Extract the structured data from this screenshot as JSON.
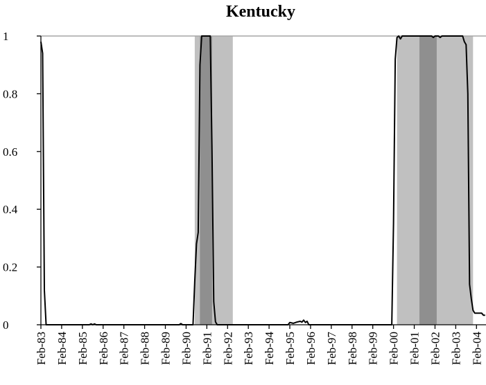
{
  "chart_data": {
    "type": "line",
    "title": "Kentucky",
    "xlabel": "",
    "ylabel": "",
    "ylim": [
      0,
      1
    ],
    "xlim": [
      "1983-02",
      "2004-07"
    ],
    "y_ticks": [
      "0",
      "0.2",
      "0.4",
      "0.6",
      "0.8",
      "1"
    ],
    "x_ticks": [
      "Feb-83",
      "Feb-84",
      "Feb-85",
      "Feb-86",
      "Feb-87",
      "Feb-88",
      "Feb-89",
      "Feb-90",
      "Feb-91",
      "Feb-92",
      "Feb-93",
      "Feb-94",
      "Feb-95",
      "Feb-96",
      "Feb-97",
      "Feb-98",
      "Feb-99",
      "Feb-00",
      "Feb-01",
      "Feb-02",
      "Feb-03",
      "Feb-04"
    ],
    "grid": false,
    "legend": "none",
    "reference_line": 1,
    "bands": [
      {
        "start": "1990-07",
        "end": "1992-05",
        "shade": "light"
      },
      {
        "start": "1990-10",
        "end": "1991-05",
        "shade": "dark"
      },
      {
        "start": "2000-04",
        "end": "2003-12",
        "shade": "light"
      },
      {
        "start": "2001-05",
        "end": "2002-03",
        "shade": "dark"
      }
    ],
    "series": [
      {
        "points": [
          [
            "1983-02",
            0.98
          ],
          [
            "1983-03",
            0.94
          ],
          [
            "1983-04",
            0.12
          ],
          [
            "1983-05",
            0.0
          ],
          [
            "1985-06",
            0.0
          ],
          [
            "1985-07",
            0.003
          ],
          [
            "1985-08",
            0.0
          ],
          [
            "1985-09",
            0.003
          ],
          [
            "1985-10",
            0.0
          ],
          [
            "1989-10",
            0.0
          ],
          [
            "1989-11",
            0.004
          ],
          [
            "1989-12",
            0.0
          ],
          [
            "1990-06",
            0.0
          ],
          [
            "1990-07",
            0.15
          ],
          [
            "1990-08",
            0.28
          ],
          [
            "1990-09",
            0.32
          ],
          [
            "1990-10",
            0.9
          ],
          [
            "1990-11",
            1.0
          ],
          [
            "1991-04",
            1.0
          ],
          [
            "1991-05",
            0.6
          ],
          [
            "1991-06",
            0.08
          ],
          [
            "1991-07",
            0.01
          ],
          [
            "1991-08",
            0.0
          ],
          [
            "1995-01",
            0.0
          ],
          [
            "1995-02",
            0.008
          ],
          [
            "1995-04",
            0.005
          ],
          [
            "1995-06",
            0.009
          ],
          [
            "1995-08",
            0.012
          ],
          [
            "1995-09",
            0.009
          ],
          [
            "1995-10",
            0.016
          ],
          [
            "1995-11",
            0.008
          ],
          [
            "1995-12",
            0.012
          ],
          [
            "1996-01",
            0.0
          ],
          [
            "2000-01",
            0.0
          ],
          [
            "2000-02",
            0.35
          ],
          [
            "2000-03",
            0.92
          ],
          [
            "2000-04",
            0.995
          ],
          [
            "2000-05",
            1.0
          ],
          [
            "2000-06",
            0.99
          ],
          [
            "2000-07",
            1.0
          ],
          [
            "2001-12",
            1.0
          ],
          [
            "2002-01",
            0.995
          ],
          [
            "2002-02",
            1.0
          ],
          [
            "2002-04",
            1.0
          ],
          [
            "2002-05",
            0.995
          ],
          [
            "2002-06",
            1.0
          ],
          [
            "2003-06",
            1.0
          ],
          [
            "2003-07",
            0.98
          ],
          [
            "2003-08",
            0.97
          ],
          [
            "2003-09",
            0.8
          ],
          [
            "2003-10",
            0.14
          ],
          [
            "2003-11",
            0.09
          ],
          [
            "2003-12",
            0.05
          ],
          [
            "2004-01",
            0.04
          ],
          [
            "2004-05",
            0.04
          ],
          [
            "2004-06",
            0.033
          ],
          [
            "2004-07",
            0.033
          ]
        ]
      }
    ]
  },
  "colors": {
    "background": "#ffffff",
    "band_light": "#c0c0c0",
    "band_dark": "#8f8f8f",
    "reference_line": "#a6a6a6",
    "series_line": "#000000",
    "axis": "#000000",
    "text": "#000000"
  }
}
